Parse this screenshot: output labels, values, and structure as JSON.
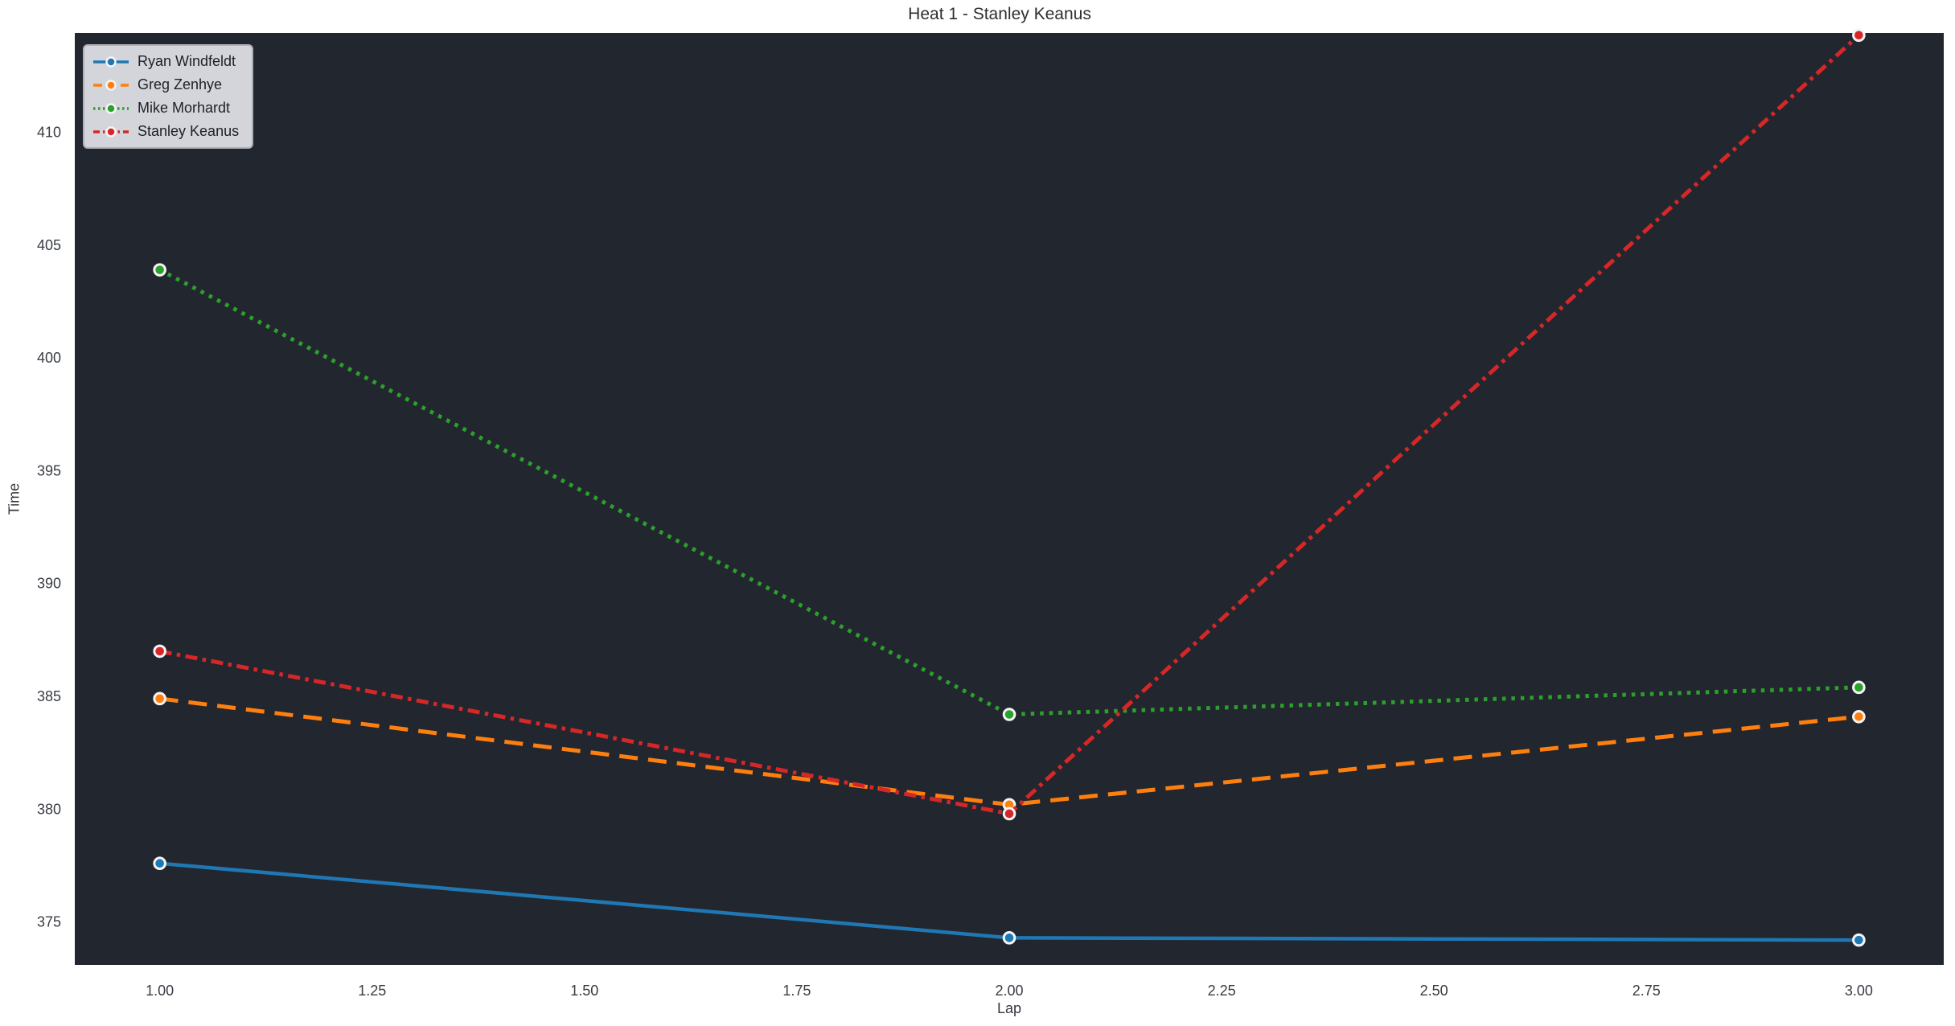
{
  "chart_data": {
    "type": "line",
    "title": "Heat 1 - Stanley Keanus",
    "xlabel": "Lap",
    "ylabel": "Time",
    "x": [
      1,
      2,
      3
    ],
    "series": [
      {
        "name": "Ryan Windfeldt",
        "color": "#1f77b4",
        "linestyle": "solid",
        "values": [
          377.6,
          374.3,
          374.2
        ]
      },
      {
        "name": "Greg Zenhye",
        "color": "#ff7f0e",
        "linestyle": "dashed",
        "values": [
          384.9,
          380.2,
          384.1
        ]
      },
      {
        "name": "Mike Morhardt",
        "color": "#2ca02c",
        "linestyle": "dotted",
        "values": [
          403.9,
          384.2,
          385.4
        ]
      },
      {
        "name": "Stanley Keanus",
        "color": "#d62728",
        "linestyle": "dashdot",
        "values": [
          387.0,
          379.8,
          414.3
        ]
      }
    ],
    "marker": "circle",
    "marker_edge_color": "#f5f5f5",
    "xlim": [
      0.9,
      3.1
    ],
    "ylim": [
      373.1,
      414.4
    ],
    "xtick_values": [
      1.0,
      1.25,
      1.5,
      1.75,
      2.0,
      2.25,
      2.5,
      2.75,
      3.0
    ],
    "xtick_labels": [
      "1.00",
      "1.25",
      "1.50",
      "1.75",
      "2.00",
      "2.25",
      "2.50",
      "2.75",
      "3.00"
    ],
    "ytick_values": [
      375,
      380,
      385,
      390,
      395,
      400,
      405,
      410
    ],
    "ytick_labels": [
      "375",
      "380",
      "385",
      "390",
      "395",
      "400",
      "405",
      "410"
    ],
    "grid": false,
    "legend_position": "upper left",
    "plot_background": "#22262e",
    "figure_background": "#ffffff"
  }
}
